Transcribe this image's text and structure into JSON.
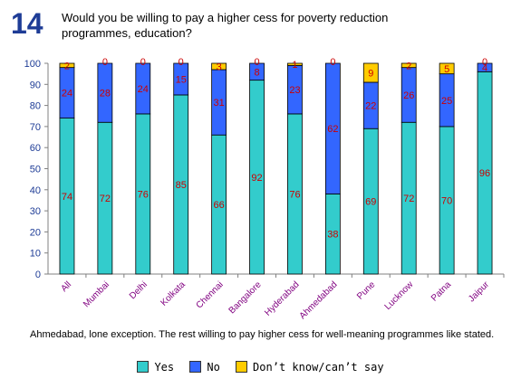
{
  "question": {
    "number": "14",
    "text": "Would you be willing to pay a higher cess for poverty reduction programmes, education?"
  },
  "note": "Ahmedabad, lone exception. The rest willing to pay higher cess for well-meaning programmes like stated.",
  "colors": {
    "yes": "#33cccc",
    "no": "#3366ff",
    "dk": "#ffcc00",
    "value_label": "#cc0000",
    "axis_label": "#1e3c96",
    "city_label": "#800080"
  },
  "chart_data": {
    "type": "bar",
    "stacked": true,
    "categories": [
      "All",
      "Mumbai",
      "Delhi",
      "Kolkata",
      "Chennai",
      "Bangalore",
      "Hyderabad",
      "Ahmedabad",
      "Pune",
      "Lucknow",
      "Patna",
      "Jaipur"
    ],
    "series": [
      {
        "key": "yes",
        "name": "Yes",
        "values": [
          74,
          72,
          76,
          85,
          66,
          92,
          76,
          38,
          69,
          72,
          70,
          96
        ]
      },
      {
        "key": "no",
        "name": "No",
        "values": [
          24,
          28,
          24,
          15,
          31,
          8,
          23,
          62,
          22,
          26,
          25,
          4
        ]
      },
      {
        "key": "dk",
        "name": "Don’t know/can’t say",
        "values": [
          2,
          0,
          0,
          0,
          3,
          0,
          1,
          0,
          9,
          2,
          5,
          0
        ]
      }
    ],
    "ylim": [
      0,
      100
    ],
    "yticks": [
      0,
      10,
      20,
      30,
      40,
      50,
      60,
      70,
      80,
      90,
      100
    ],
    "grid": false,
    "legend_position": "bottom"
  }
}
